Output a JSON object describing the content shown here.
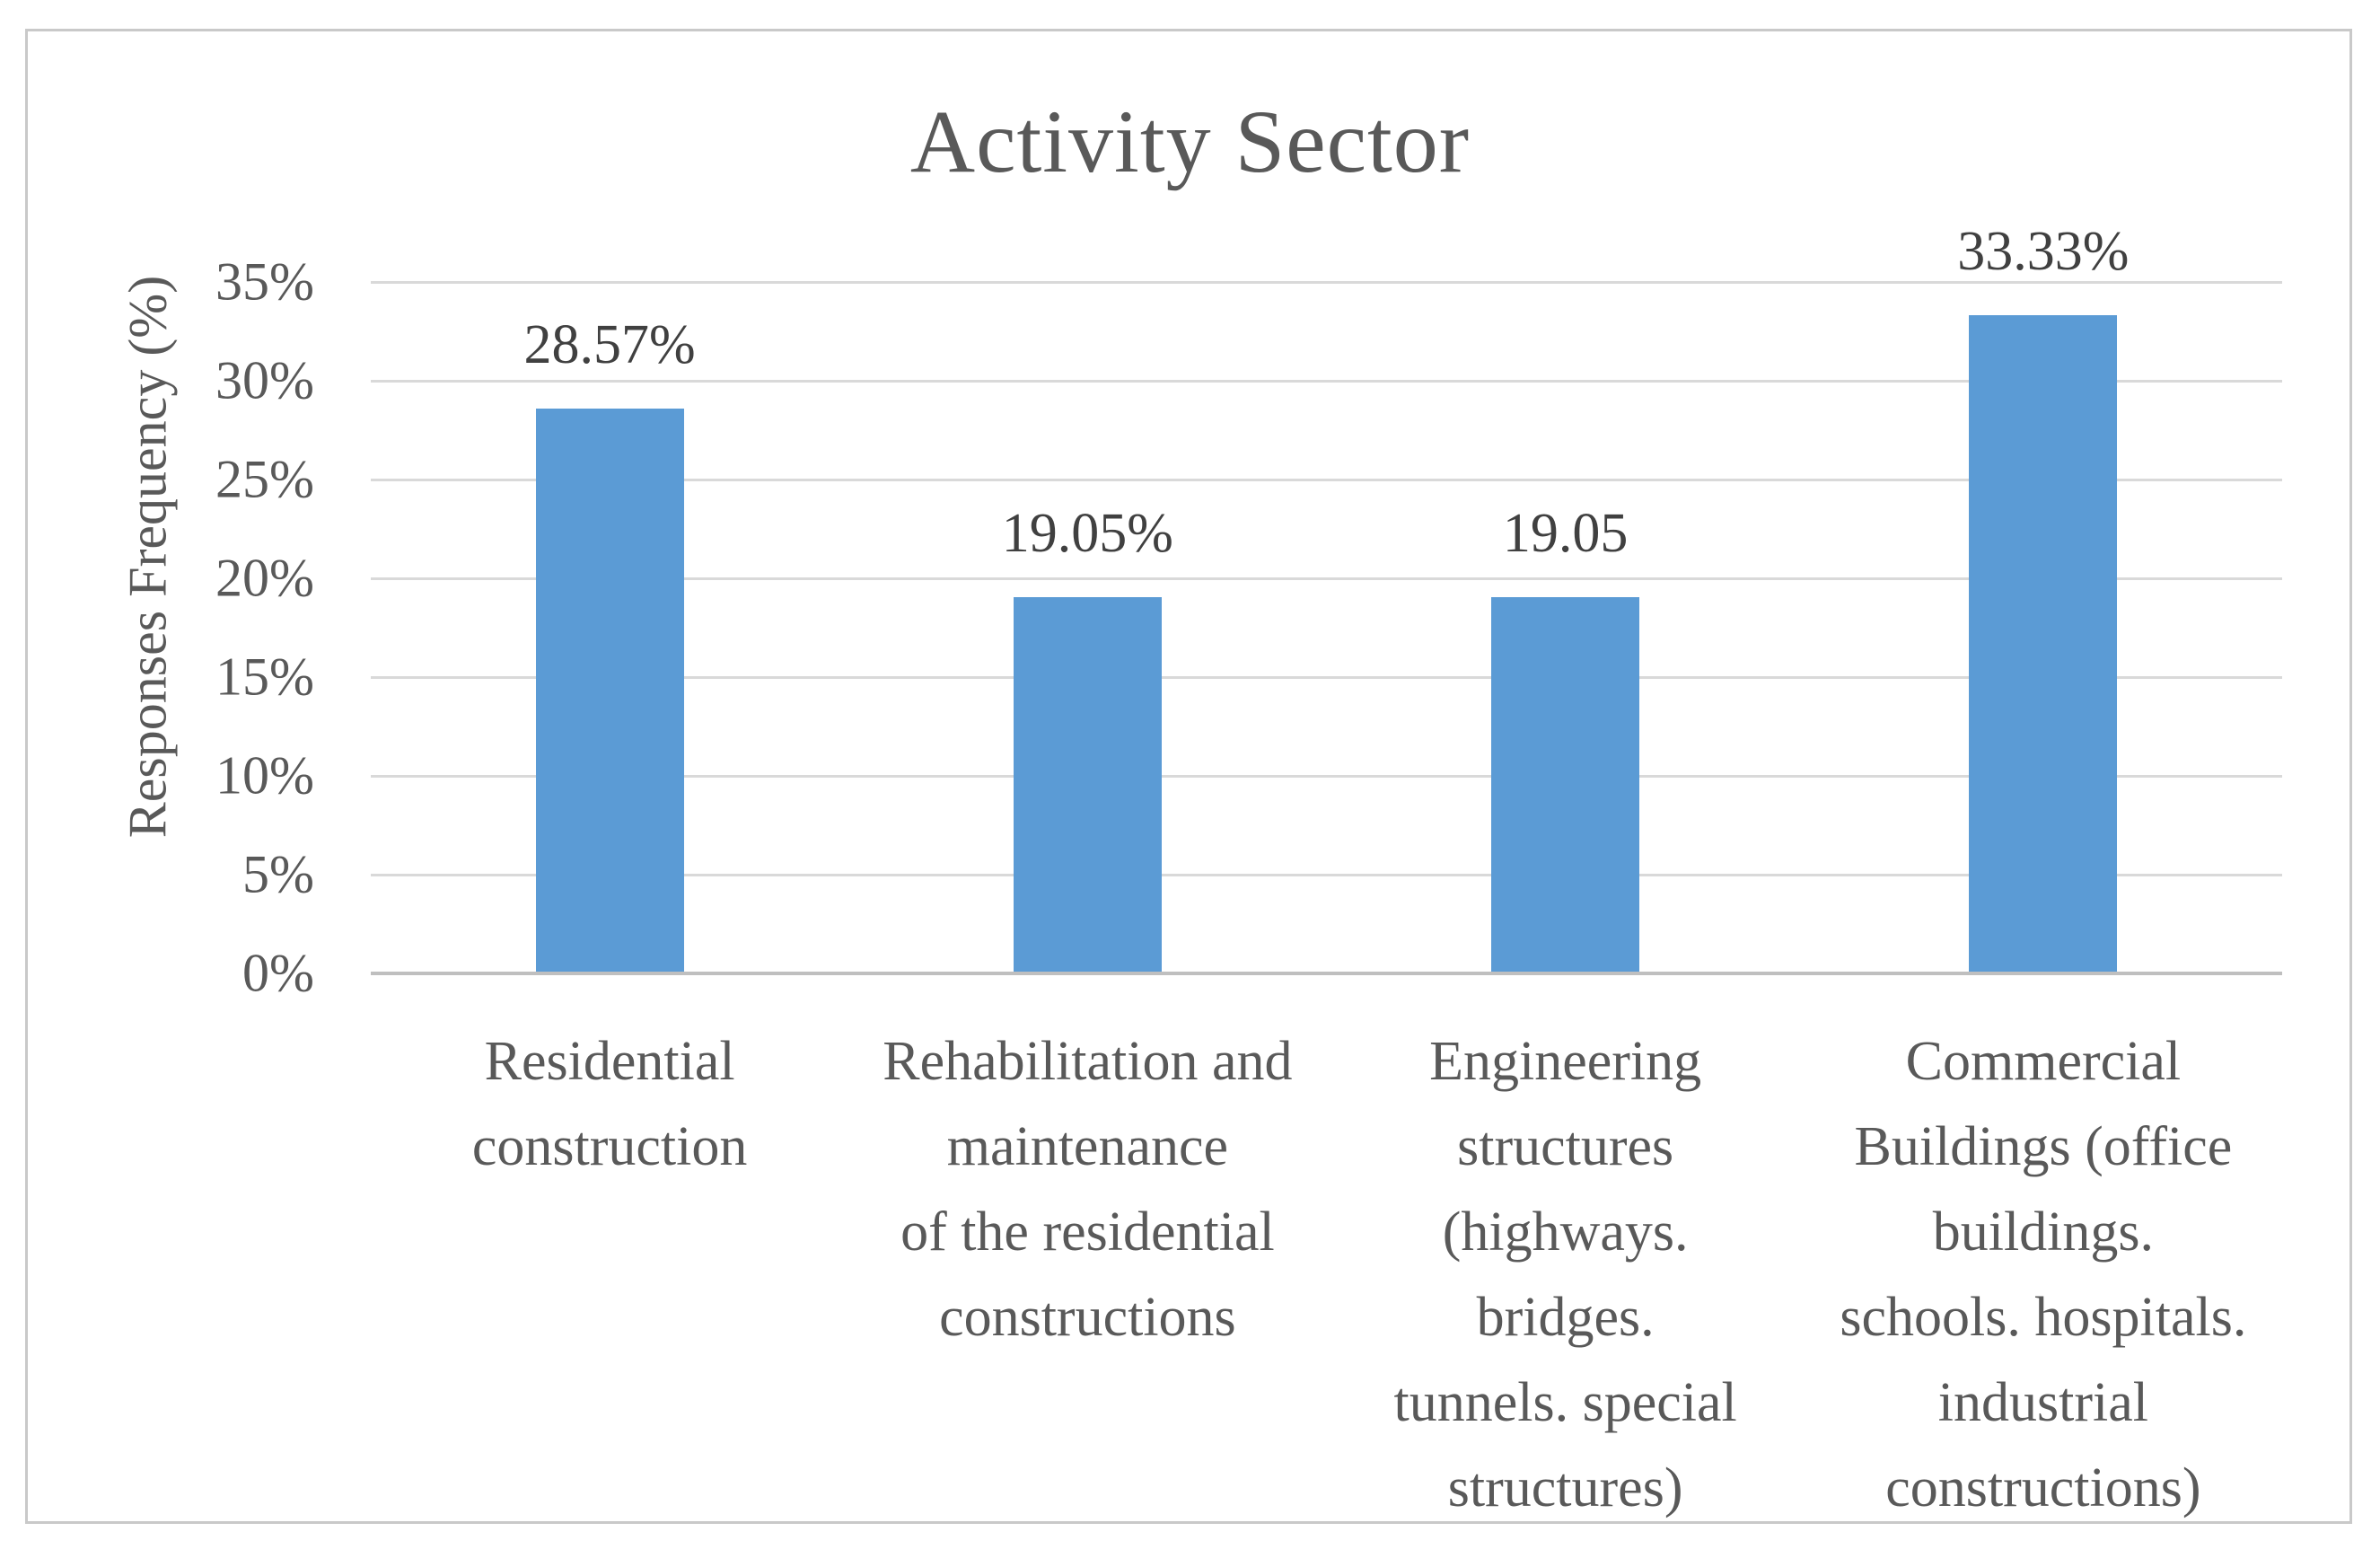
{
  "figure": {
    "frame_border_color": "#c9c9c9",
    "background_color": "#ffffff"
  },
  "chart_data": {
    "type": "bar",
    "title": "Activity Sector",
    "xlabel": "",
    "ylabel": "Responses Frequency (%)",
    "categories": [
      "Residential construction",
      "Rehabilitation and maintenance of the residential constructions",
      "Engineering structures (highways. bridges. tunnels. special structures)",
      "Commercial Buildings (office buildings. schools. hospitals. industrial constructions)"
    ],
    "category_lines": [
      [
        "Residential",
        "construction"
      ],
      [
        "Rehabilitation and",
        "maintenance",
        "of the residential",
        "constructions"
      ],
      [
        "Engineering",
        "structures",
        "(highways.",
        "bridges.",
        "tunnels. special",
        "structures)"
      ],
      [
        "Commercial",
        "Buildings (office",
        "buildings.",
        "schools. hospitals.",
        "industrial",
        "constructions)"
      ]
    ],
    "values": [
      28.57,
      19.05,
      19.05,
      33.33
    ],
    "data_labels": [
      "28.57%",
      "19.05%",
      "19.05",
      "33.33%"
    ],
    "yticks": [
      "0%",
      "5%",
      "10%",
      "15%",
      "20%",
      "25%",
      "30%",
      "35%"
    ],
    "ylim": [
      0,
      35
    ],
    "grid": true,
    "legend": "none",
    "colors": {
      "bar": "#5B9BD5",
      "gridline": "#d9d9d9",
      "axis_line": "#bfbfbf",
      "axis_text": "#595959",
      "title_text": "#595959",
      "data_label_text": "#404040"
    }
  }
}
